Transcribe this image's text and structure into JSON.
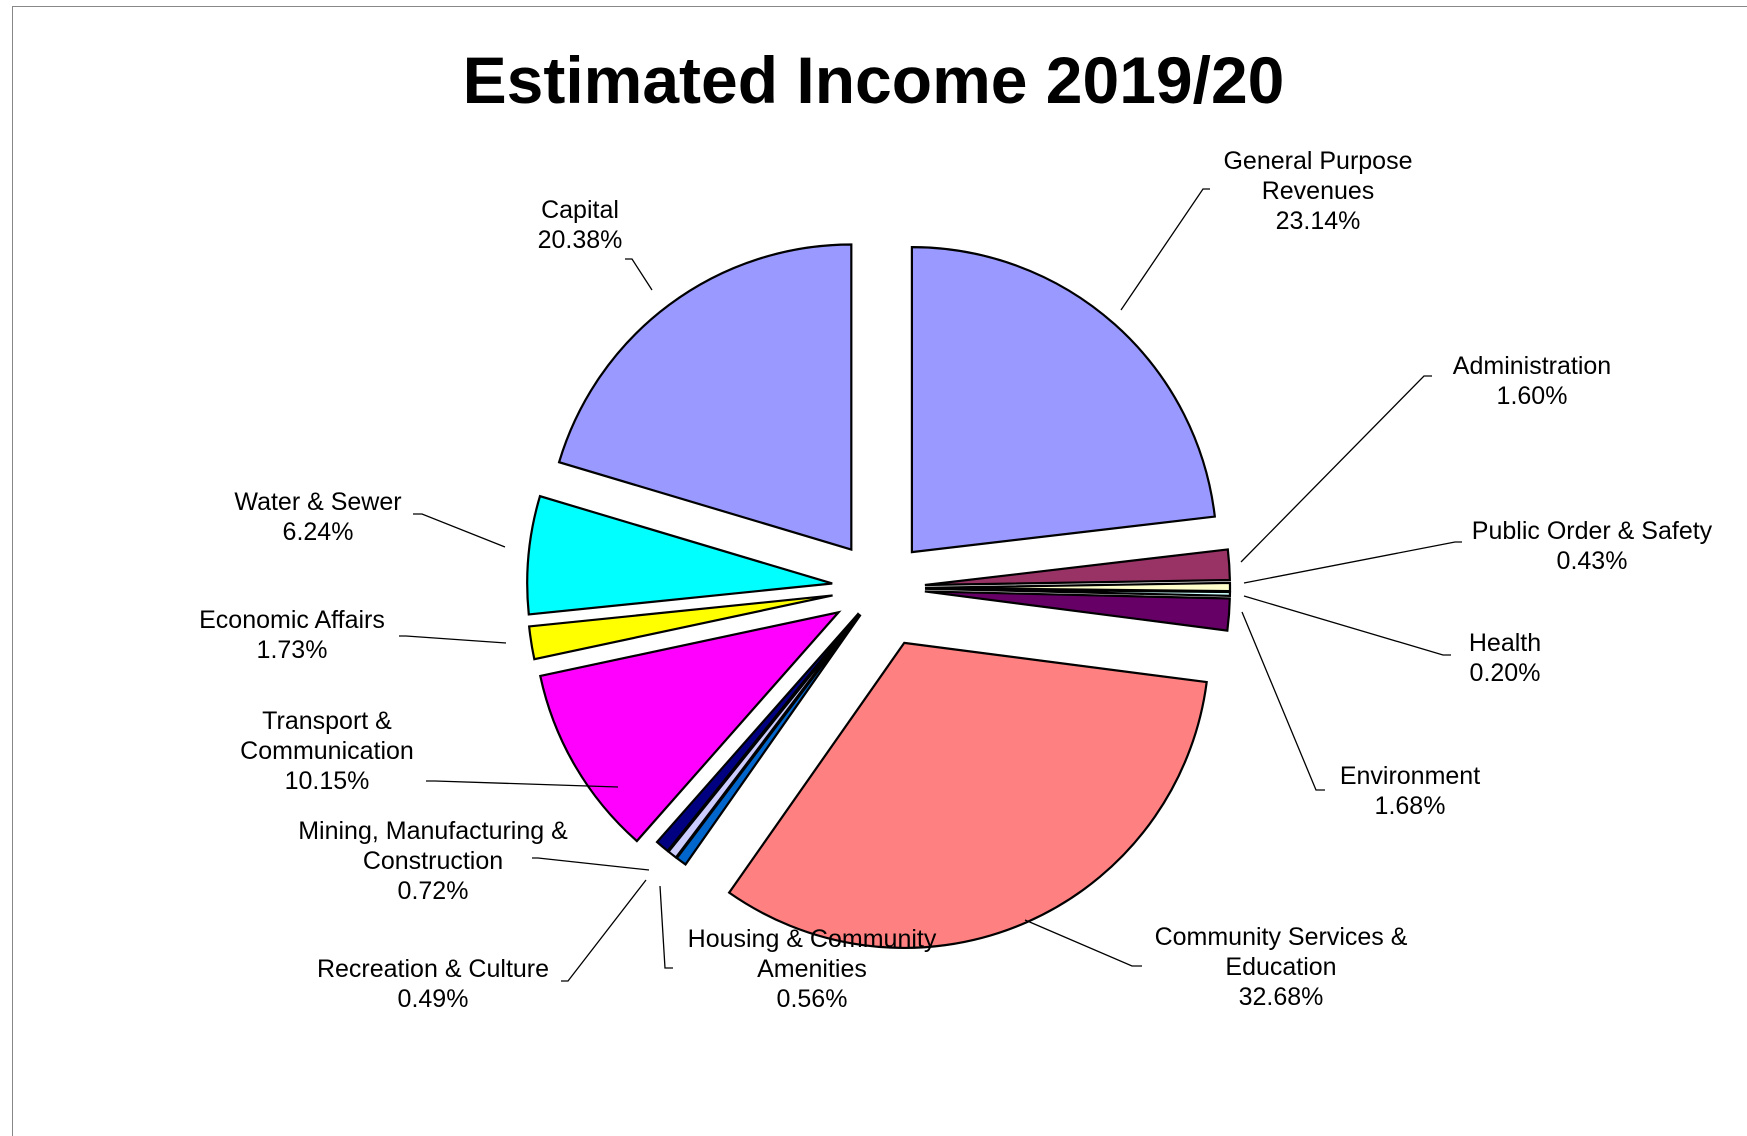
{
  "chart_data": {
    "type": "pie",
    "title": "Estimated Income 2019/20",
    "slices": [
      {
        "lines": [
          "General Purpose",
          "Revenues"
        ],
        "pct_label": "23.14%",
        "value": 23.14,
        "color": "#9999FF"
      },
      {
        "lines": [
          "Administration"
        ],
        "pct_label": "1.60%",
        "value": 1.6,
        "color": "#993366"
      },
      {
        "lines": [
          "Public Order & Safety"
        ],
        "pct_label": "0.43%",
        "value": 0.43,
        "color": "#FFFFCC"
      },
      {
        "lines": [
          "Health"
        ],
        "pct_label": "0.20%",
        "value": 0.2,
        "color": "#CCFFFF"
      },
      {
        "lines": [
          "Environment"
        ],
        "pct_label": "1.68%",
        "value": 1.68,
        "color": "#660066"
      },
      {
        "lines": [
          "Community Services &",
          "Education"
        ],
        "pct_label": "32.68%",
        "value": 32.68,
        "color": "#FF8080"
      },
      {
        "lines": [
          "Housing & Community",
          "Amenities"
        ],
        "pct_label": "0.56%",
        "value": 0.56,
        "color": "#0066CC"
      },
      {
        "lines": [
          "Recreation & Culture"
        ],
        "pct_label": "0.49%",
        "value": 0.49,
        "color": "#CCCCFF"
      },
      {
        "lines": [
          "Mining, Manufacturing &",
          "Construction"
        ],
        "pct_label": "0.72%",
        "value": 0.72,
        "color": "#000080"
      },
      {
        "lines": [
          "Transport &",
          "Communication"
        ],
        "pct_label": "10.15%",
        "value": 10.15,
        "color": "#FF00FF"
      },
      {
        "lines": [
          "Economic Affairs"
        ],
        "pct_label": "1.73%",
        "value": 1.73,
        "color": "#FFFF00"
      },
      {
        "lines": [
          "Water & Sewer"
        ],
        "pct_label": "6.24%",
        "value": 6.24,
        "color": "#00FFFF"
      },
      {
        "lines": [
          "Capital"
        ],
        "pct_label": "20.38%",
        "value": 20.38,
        "color": "#9999FF"
      }
    ],
    "start": "12 o'clock",
    "direction": "clockwise",
    "exploded": true,
    "legend": "none"
  }
}
